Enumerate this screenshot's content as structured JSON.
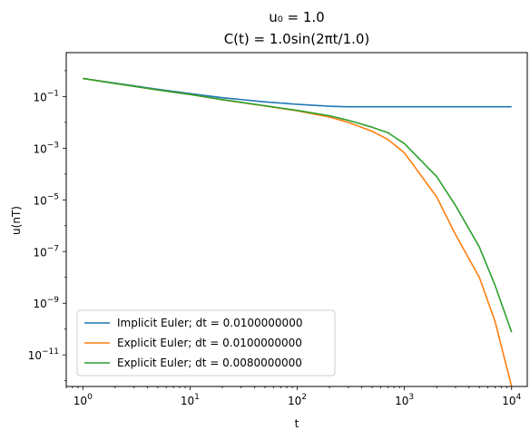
{
  "chart_data": {
    "type": "line",
    "title_line1": "u₀ = 1.0",
    "title_line2": "C(t) = 1.0sin(2πt/1.0)",
    "xlabel": "t",
    "ylabel": "u(nT)",
    "xscale": "log",
    "yscale": "log",
    "xlim": [
      0.7,
      14000
    ],
    "ylim": [
      6e-13,
      5
    ],
    "x_ticks": [
      {
        "value": 1,
        "base": "10",
        "exp": "0"
      },
      {
        "value": 10,
        "base": "10",
        "exp": "1"
      },
      {
        "value": 100,
        "base": "10",
        "exp": "2"
      },
      {
        "value": 1000,
        "base": "10",
        "exp": "3"
      },
      {
        "value": 10000,
        "base": "10",
        "exp": "4"
      }
    ],
    "y_ticks": [
      {
        "value": 1e-11,
        "base": "10",
        "exp": "−11"
      },
      {
        "value": 1e-09,
        "base": "10",
        "exp": "−9"
      },
      {
        "value": 1e-07,
        "base": "10",
        "exp": "−7"
      },
      {
        "value": 1e-05,
        "base": "10",
        "exp": "−5"
      },
      {
        "value": 0.001,
        "base": "10",
        "exp": "−3"
      },
      {
        "value": 0.1,
        "base": "10",
        "exp": "−1"
      }
    ],
    "grid": false,
    "legend_position": "lower-left",
    "x": [
      1,
      2,
      5,
      10,
      20,
      50,
      100,
      200,
      300,
      500,
      700,
      1000,
      2000,
      3000,
      5000,
      7000,
      10000
    ],
    "series": [
      {
        "name": "Implicit Euler; dt = 0.0100000000",
        "color": "#1f77b4",
        "values": [
          0.5,
          0.33,
          0.19,
          0.13,
          0.09,
          0.062,
          0.05,
          0.042,
          0.04,
          0.04,
          0.04,
          0.04,
          0.04,
          0.04,
          0.04,
          0.04,
          0.04
        ]
      },
      {
        "name": "Explicit Euler; dt = 0.0100000000",
        "color": "#ff7f0e",
        "values": [
          0.5,
          0.32,
          0.18,
          0.12,
          0.075,
          0.043,
          0.028,
          0.016,
          0.01,
          0.0045,
          0.0022,
          0.00066,
          1.3e-05,
          4.5e-07,
          1e-08,
          2e-10,
          6e-13
        ]
      },
      {
        "name": "Explicit Euler; dt = 0.0080000000",
        "color": "#2ca02c",
        "values": [
          0.5,
          0.32,
          0.18,
          0.12,
          0.076,
          0.044,
          0.029,
          0.018,
          0.012,
          0.0065,
          0.004,
          0.0015,
          8e-05,
          6e-06,
          1.5e-07,
          5e-09,
          7.5e-11
        ]
      }
    ]
  }
}
